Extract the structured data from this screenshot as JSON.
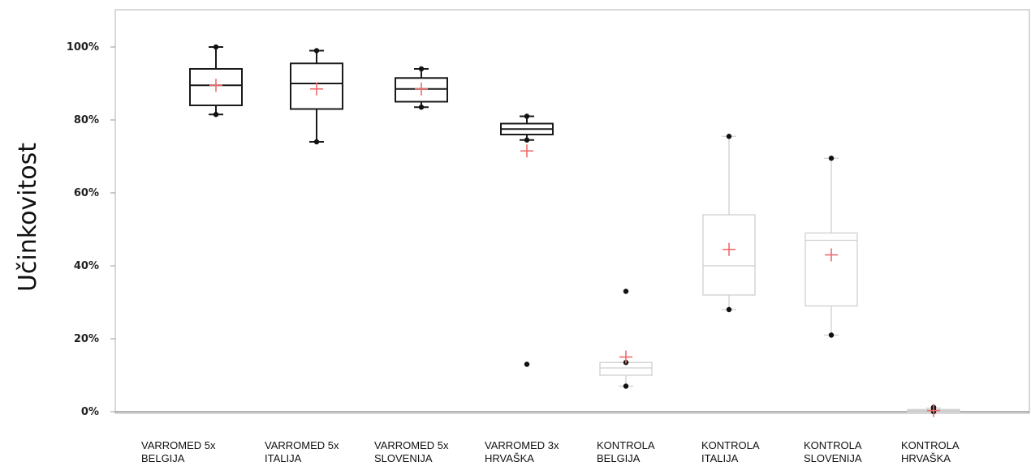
{
  "chart_data": {
    "type": "boxplot",
    "ylabel": "Učinkovitost",
    "xlabel": "",
    "ylim": [
      0,
      100
    ],
    "yticks": [
      "0%",
      "20%",
      "40%",
      "60%",
      "80%",
      "100%"
    ],
    "ytick_values": [
      0,
      20,
      40,
      60,
      80,
      100
    ],
    "grid": false,
    "categories": [
      {
        "line1": "VARROMED 5x",
        "line2": "BELGIJA"
      },
      {
        "line1": "VARROMED 5x",
        "line2": "ITALIJA"
      },
      {
        "line1": "VARROMED 5x",
        "line2": "SLOVENIJA"
      },
      {
        "line1": "VARROMED 3x",
        "line2": "HRVAŠKA"
      },
      {
        "line1": "KONTROLA",
        "line2": "BELGIJA"
      },
      {
        "line1": "KONTROLA",
        "line2": "ITALIJA"
      },
      {
        "line1": "KONTROLA",
        "line2": "SLOVENIJA"
      },
      {
        "line1": "KONTROLA",
        "line2": "HRVAŠKA"
      }
    ],
    "boxes": [
      {
        "min": 81.5,
        "q1": 84,
        "median": 89.5,
        "q3": 94,
        "max": 100,
        "mean": 89.5,
        "outliers": [],
        "style": "dark"
      },
      {
        "min": 74,
        "q1": 83,
        "median": 90,
        "q3": 95.5,
        "max": 99,
        "mean": 88.5,
        "outliers": [],
        "style": "dark"
      },
      {
        "min": 83.5,
        "q1": 85,
        "median": 88.5,
        "q3": 91.5,
        "max": 94,
        "mean": 88.5,
        "outliers": [],
        "style": "dark"
      },
      {
        "min": 74.5,
        "q1": 76,
        "median": 77.5,
        "q3": 79,
        "max": 81,
        "mean": 71.5,
        "outliers": [
          13
        ],
        "style": "dark"
      },
      {
        "min": 7,
        "q1": 10,
        "median": 12,
        "q3": 13.5,
        "max": 13.5,
        "mean": 15,
        "outliers": [
          33
        ],
        "style": "light"
      },
      {
        "min": 28,
        "q1": 32,
        "median": 40,
        "q3": 54,
        "max": 75.5,
        "mean": 44.5,
        "outliers": [],
        "style": "light"
      },
      {
        "min": 21,
        "q1": 29,
        "median": 47,
        "q3": 49,
        "max": 69.5,
        "mean": 43,
        "outliers": [],
        "style": "light"
      },
      {
        "min": 0,
        "q1": 0,
        "median": 0.3,
        "q3": 0.6,
        "max": 1,
        "mean": 0.3,
        "outliers": [
          1.2,
          0.4
        ],
        "style": "light"
      }
    ],
    "colors": {
      "dark": "#1a1a1a",
      "light": "#cfcfcf",
      "mean_marker": "#ef6a6a",
      "point": "#111111",
      "axis": "#999999"
    }
  }
}
